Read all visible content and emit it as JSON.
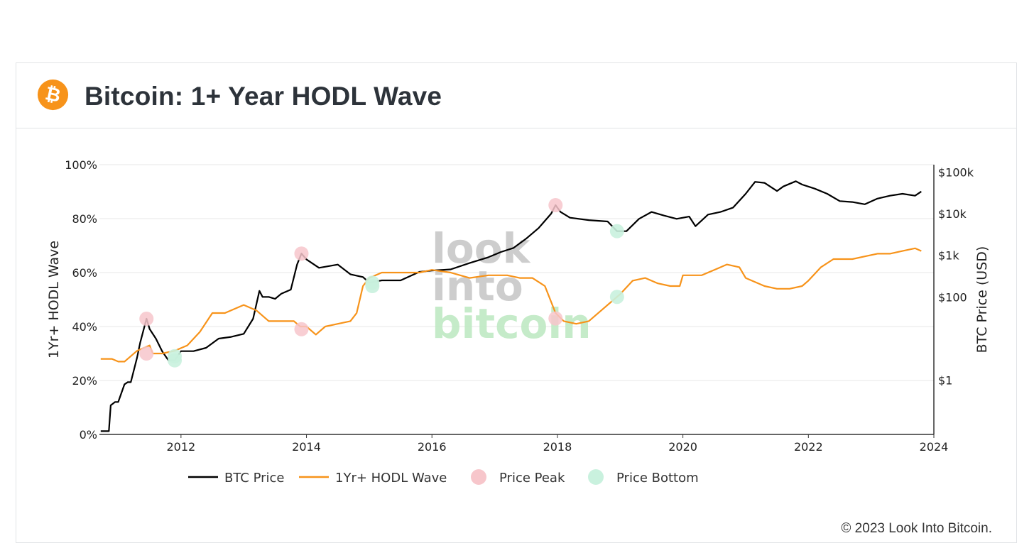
{
  "header": {
    "title": "Bitcoin: 1+ Year HODL Wave",
    "logo_icon": "bitcoin-logo-icon",
    "logo_color": "#F7931A"
  },
  "watermark": [
    "look",
    "into",
    "bitcoin"
  ],
  "copyright": "© 2023 Look Into Bitcoin.",
  "colors": {
    "btc_price": "#000000",
    "hodl_wave": "#F7931A",
    "peak": "#F7C6CB",
    "bottom": "#C9F1DE",
    "grid": "#e7e7e7",
    "watermark_gray": "#c8c8c8",
    "watermark_green": "#bfe9c4"
  },
  "chart_data": {
    "type": "line",
    "title": "Bitcoin: 1+ Year HODL Wave",
    "xlabel": "",
    "ylabel_left": "1Yr+ HODL Wave",
    "ylabel_right": "BTC Price (USD)",
    "xlim": [
      2010.7,
      2024.0
    ],
    "ylim_left": [
      0,
      100
    ],
    "ylim_right_log": [
      0.05,
      150000
    ],
    "y_scale_right": "log",
    "x_ticks": [
      "2012",
      "2014",
      "2016",
      "2018",
      "2020",
      "2022",
      "2024"
    ],
    "x_tick_values": [
      2012,
      2014,
      2016,
      2018,
      2020,
      2022,
      2024
    ],
    "y_ticks_left": [
      "0%",
      "20%",
      "40%",
      "60%",
      "80%",
      "100%"
    ],
    "y_tick_values_left": [
      0,
      20,
      40,
      60,
      80,
      100
    ],
    "y_ticks_right": [
      "$1",
      "$100",
      "$1k",
      "$10k",
      "$100k"
    ],
    "y_tick_values_right": [
      1,
      100,
      1000,
      10000,
      100000
    ],
    "grid": true,
    "legend_position": "bottom",
    "legend": [
      "BTC Price",
      "1Yr+ HODL Wave",
      "Price Peak",
      "Price Bottom"
    ],
    "series": [
      {
        "name": "BTC Price",
        "axis": "right",
        "x": [
          2010.72,
          2010.85,
          2010.88,
          2010.95,
          2011.0,
          2011.1,
          2011.15,
          2011.2,
          2011.3,
          2011.35,
          2011.45,
          2011.5,
          2011.6,
          2011.7,
          2011.8,
          2011.9,
          2012.0,
          2012.1,
          2012.2,
          2012.4,
          2012.6,
          2012.8,
          2013.0,
          2013.15,
          2013.25,
          2013.3,
          2013.4,
          2013.5,
          2013.6,
          2013.75,
          2013.85,
          2013.92,
          2014.0,
          2014.2,
          2014.5,
          2014.7,
          2014.9,
          2015.0,
          2015.2,
          2015.5,
          2015.8,
          2016.0,
          2016.3,
          2016.6,
          2016.9,
          2017.1,
          2017.3,
          2017.5,
          2017.7,
          2017.9,
          2017.97,
          2018.05,
          2018.2,
          2018.5,
          2018.8,
          2018.95,
          2019.1,
          2019.3,
          2019.5,
          2019.7,
          2019.9,
          2020.1,
          2020.2,
          2020.4,
          2020.6,
          2020.8,
          2021.0,
          2021.15,
          2021.3,
          2021.5,
          2021.6,
          2021.8,
          2021.9,
          2022.1,
          2022.3,
          2022.5,
          2022.7,
          2022.9,
          2023.1,
          2023.3,
          2023.5,
          2023.7,
          2023.8
        ],
        "values": [
          0.06,
          0.06,
          0.25,
          0.3,
          0.3,
          0.8,
          0.9,
          0.9,
          3.5,
          8,
          30,
          17,
          10,
          5,
          3,
          3,
          5,
          5,
          5,
          6,
          10,
          11,
          13,
          30,
          140,
          100,
          100,
          90,
          120,
          150,
          600,
          1100,
          800,
          500,
          600,
          350,
          300,
          220,
          250,
          250,
          400,
          430,
          460,
          650,
          900,
          1200,
          1500,
          2500,
          4500,
          10000,
          16000,
          11000,
          8000,
          7000,
          6500,
          3800,
          3800,
          7500,
          11000,
          9000,
          7500,
          8500,
          5000,
          9500,
          11000,
          14000,
          30000,
          58000,
          55000,
          35000,
          45000,
          60000,
          50000,
          40000,
          30000,
          20000,
          19000,
          16800,
          23000,
          27000,
          30000,
          27000,
          34000
        ]
      },
      {
        "name": "1Yr+ HODL Wave",
        "axis": "left",
        "x": [
          2010.72,
          2010.9,
          2011.0,
          2011.1,
          2011.3,
          2011.4,
          2011.5,
          2011.55,
          2011.7,
          2011.9,
          2012.0,
          2012.1,
          2012.3,
          2012.5,
          2012.7,
          2012.9,
          2013.0,
          2013.2,
          2013.4,
          2013.6,
          2013.8,
          2013.9,
          2014.0,
          2014.15,
          2014.2,
          2014.3,
          2014.5,
          2014.7,
          2014.8,
          2014.9,
          2015.0,
          2015.2,
          2015.5,
          2015.8,
          2016.0,
          2016.3,
          2016.6,
          2016.9,
          2017.2,
          2017.4,
          2017.6,
          2017.8,
          2017.97,
          2018.1,
          2018.3,
          2018.5,
          2018.7,
          2018.9,
          2019.0,
          2019.2,
          2019.4,
          2019.6,
          2019.8,
          2019.95,
          2020.0,
          2020.3,
          2020.5,
          2020.7,
          2020.9,
          2021.0,
          2021.3,
          2021.5,
          2021.7,
          2021.9,
          2022.0,
          2022.2,
          2022.4,
          2022.7,
          2022.9,
          2023.1,
          2023.3,
          2023.5,
          2023.7,
          2023.8
        ],
        "values": [
          28,
          28,
          27,
          27,
          31,
          32,
          33,
          30,
          30,
          31,
          32,
          33,
          38,
          45,
          45,
          47,
          48,
          46,
          42,
          42,
          42,
          40,
          40,
          37,
          38,
          40,
          41,
          42,
          45,
          55,
          58,
          60,
          60,
          60,
          61,
          60,
          58,
          59,
          59,
          58,
          58,
          55,
          45,
          42,
          41,
          42,
          46,
          50,
          52,
          57,
          58,
          56,
          55,
          55,
          59,
          59,
          61,
          63,
          62,
          58,
          55,
          54,
          54,
          55,
          57,
          62,
          65,
          65,
          66,
          67,
          67,
          68,
          69,
          68
        ]
      }
    ],
    "price_peaks": [
      {
        "x": 2011.45,
        "btc": 30,
        "hodl": 30
      },
      {
        "x": 2013.92,
        "btc": 1100,
        "hodl": 39
      },
      {
        "x": 2017.97,
        "btc": 16000,
        "hodl": 43
      }
    ],
    "price_bottoms": [
      {
        "x": 2011.9,
        "btc": 3,
        "hodl": 29
      },
      {
        "x": 2015.05,
        "btc": 220,
        "hodl": 55
      },
      {
        "x": 2018.95,
        "btc": 3800,
        "hodl": 51
      }
    ]
  }
}
